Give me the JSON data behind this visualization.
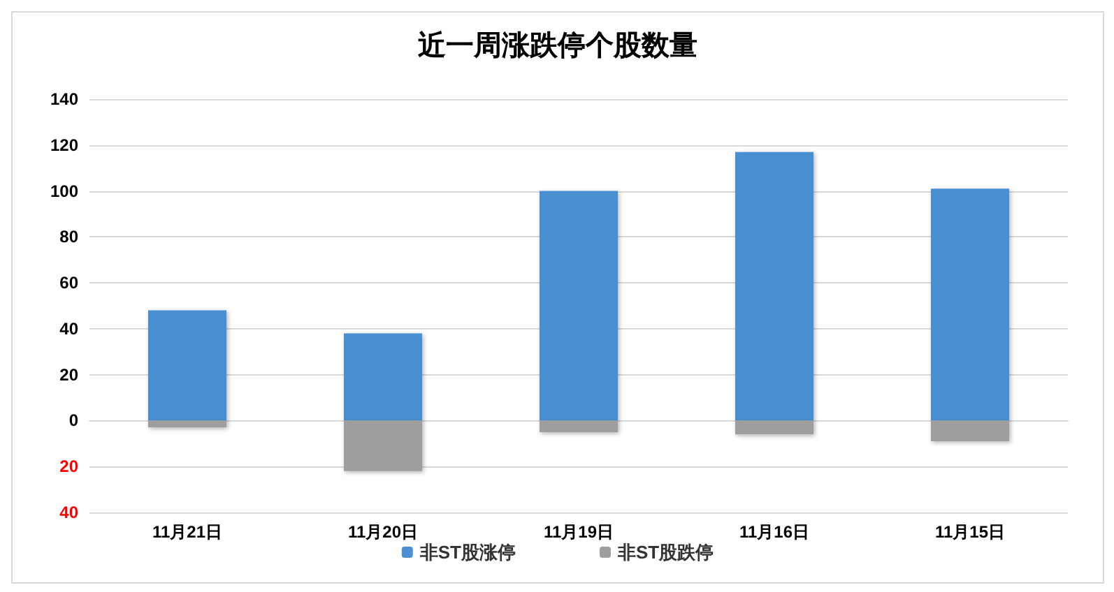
{
  "chart_data": {
    "type": "bar",
    "title": "近一周涨跌停个股数量",
    "categories": [
      "11月21日",
      "11月20日",
      "11月19日",
      "11月16日",
      "11月15日"
    ],
    "stacked": true,
    "series": [
      {
        "name": "非ST股涨停",
        "color": "#4a90d2",
        "values": [
          48,
          38,
          100,
          117,
          101
        ]
      },
      {
        "name": "非ST股跌停",
        "color": "#9e9e9e",
        "values": [
          -3,
          -22,
          -5,
          -6,
          -9
        ]
      }
    ],
    "ylim": [
      -40,
      140
    ],
    "yticks": [
      {
        "value": -40,
        "label": "40"
      },
      {
        "value": -20,
        "label": "20"
      },
      0,
      20,
      40,
      60,
      80,
      100,
      120,
      140
    ],
    "grid": "y",
    "legend": "bottom"
  }
}
